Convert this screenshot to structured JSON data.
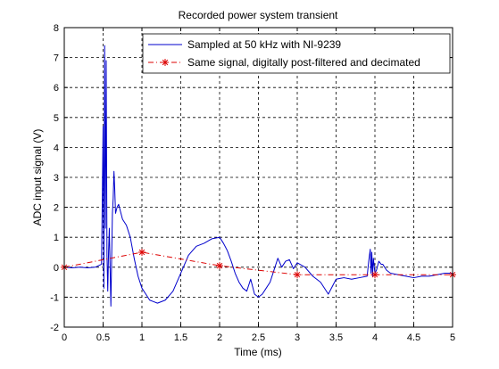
{
  "chart_data": {
    "type": "line",
    "title": "Recorded power system transient",
    "xlabel": "Time (ms)",
    "ylabel": "ADC input signal (V)",
    "xlim": [
      0,
      5
    ],
    "ylim": [
      -2,
      8
    ],
    "xticks": [
      0,
      0.5,
      1,
      1.5,
      2,
      2.5,
      3,
      3.5,
      4,
      4.5,
      5
    ],
    "xtick_labels": [
      "0",
      "0.5",
      "1",
      "1.5",
      "2",
      "2.5",
      "3",
      "3.5",
      "4",
      "4.5",
      "5"
    ],
    "yticks": [
      -2,
      -1,
      0,
      1,
      2,
      3,
      4,
      5,
      6,
      7,
      8
    ],
    "ytick_labels": [
      "-2",
      "-1",
      "0",
      "1",
      "2",
      "3",
      "4",
      "5",
      "6",
      "7",
      "8"
    ],
    "grid": true,
    "legend_position": "top-right",
    "series": [
      {
        "name": "Sampled at 50 kHz with NI-9239",
        "color": "#0000cc",
        "style": "solid",
        "marker": "none",
        "x": [
          0,
          0.1,
          0.2,
          0.3,
          0.4,
          0.48,
          0.5,
          0.51,
          0.52,
          0.53,
          0.54,
          0.55,
          0.56,
          0.57,
          0.58,
          0.6,
          0.61,
          0.62,
          0.63,
          0.64,
          0.65,
          0.66,
          0.68,
          0.7,
          0.72,
          0.75,
          0.8,
          0.85,
          0.9,
          0.95,
          1.0,
          1.05,
          1.1,
          1.15,
          1.2,
          1.3,
          1.4,
          1.5,
          1.6,
          1.7,
          1.8,
          1.9,
          2.0,
          2.05,
          2.1,
          2.15,
          2.2,
          2.25,
          2.3,
          2.35,
          2.4,
          2.45,
          2.5,
          2.55,
          2.6,
          2.65,
          2.7,
          2.75,
          2.8,
          2.85,
          2.9,
          2.95,
          3.0,
          3.1,
          3.2,
          3.3,
          3.4,
          3.5,
          3.6,
          3.7,
          3.8,
          3.9,
          3.92,
          3.94,
          3.95,
          3.96,
          3.97,
          3.98,
          4.0,
          4.02,
          4.05,
          4.08,
          4.1,
          4.15,
          4.2,
          4.3,
          4.4,
          4.5,
          4.6,
          4.7,
          4.8,
          4.9,
          5.0
        ],
        "y": [
          0.0,
          -0.02,
          0.0,
          -0.02,
          0.0,
          0.1,
          4.7,
          -0.7,
          7.4,
          1.3,
          6.9,
          0.4,
          -0.8,
          0.5,
          1.3,
          -1.3,
          0.3,
          1.8,
          2.3,
          3.2,
          2.6,
          1.8,
          2.0,
          2.1,
          1.9,
          1.6,
          1.4,
          1.0,
          0.3,
          -0.3,
          -0.7,
          -0.9,
          -1.1,
          -1.15,
          -1.2,
          -1.1,
          -0.8,
          -0.2,
          0.4,
          0.7,
          0.8,
          0.95,
          1.0,
          0.8,
          0.55,
          0.2,
          -0.2,
          -0.5,
          -0.7,
          -0.8,
          -0.4,
          -0.9,
          -1.0,
          -0.9,
          -0.7,
          -0.5,
          -0.1,
          0.3,
          0.0,
          0.2,
          0.25,
          -0.05,
          0.15,
          0.0,
          -0.3,
          -0.5,
          -0.9,
          -0.4,
          -0.35,
          -0.4,
          -0.35,
          -0.3,
          0.2,
          0.6,
          -0.2,
          0.5,
          -0.3,
          0.3,
          -0.2,
          -0.1,
          0.2,
          0.1,
          0.1,
          -0.1,
          -0.2,
          -0.25,
          -0.3,
          -0.35,
          -0.3,
          -0.3,
          -0.25,
          -0.2,
          -0.2
        ]
      },
      {
        "name": "Same signal, digitally post-filtered and decimated",
        "color": "#dd0000",
        "style": "dashdot",
        "marker": "star",
        "x": [
          0,
          1,
          2,
          3,
          4,
          5
        ],
        "y": [
          0.0,
          0.5,
          0.05,
          -0.25,
          -0.25,
          -0.25
        ]
      }
    ]
  }
}
